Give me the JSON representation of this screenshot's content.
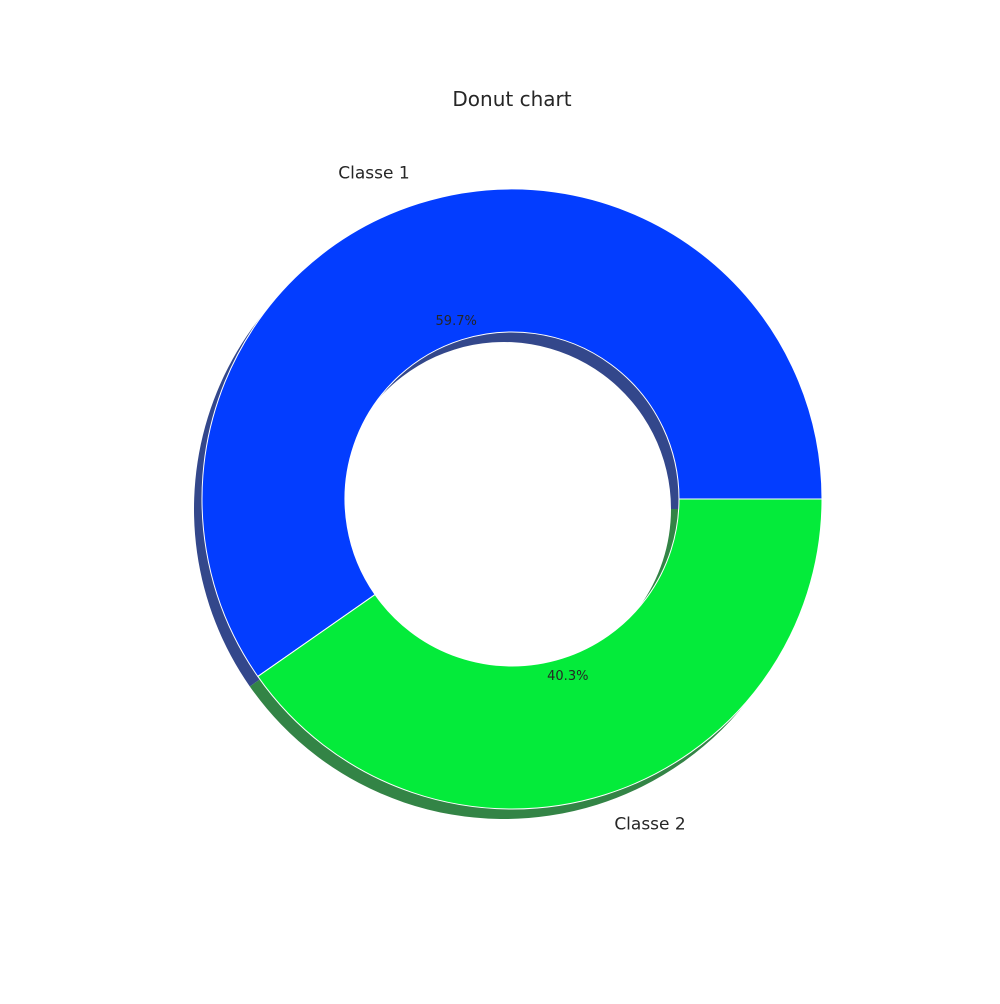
{
  "chart_data": {
    "type": "pie",
    "variant": "donut",
    "title": "Donut chart",
    "categories": [
      "Classe 1",
      "Classe 2"
    ],
    "values": [
      59.7,
      40.3
    ],
    "value_labels": [
      "59.7%",
      "40.3%"
    ],
    "colors": [
      "#033dff",
      "#04eb3a"
    ],
    "shadow": true,
    "legend": "none"
  }
}
